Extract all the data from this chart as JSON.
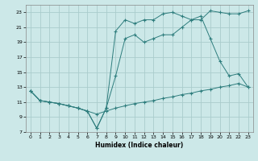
{
  "xlabel": "Humidex (Indice chaleur)",
  "bg_color": "#cce8e8",
  "grid_color": "#aacccc",
  "line_color": "#2e7d7d",
  "xlim": [
    -0.5,
    23.5
  ],
  "ylim": [
    7,
    24
  ],
  "xticks": [
    0,
    1,
    2,
    3,
    4,
    5,
    6,
    7,
    8,
    9,
    10,
    11,
    12,
    13,
    14,
    15,
    16,
    17,
    18,
    19,
    20,
    21,
    22,
    23
  ],
  "yticks": [
    7,
    9,
    11,
    13,
    15,
    17,
    19,
    21,
    23
  ],
  "series1_x": [
    0,
    1,
    2,
    3,
    4,
    5,
    6,
    7,
    8,
    9,
    10,
    11,
    12,
    13,
    14,
    15,
    16,
    17,
    18,
    19,
    20,
    21,
    22,
    23
  ],
  "series1_y": [
    12.5,
    11.2,
    11.0,
    10.8,
    10.5,
    10.2,
    9.8,
    9.4,
    9.8,
    10.2,
    10.5,
    10.8,
    11.0,
    11.2,
    11.5,
    11.7,
    12.0,
    12.2,
    12.5,
    12.7,
    13.0,
    13.2,
    13.5,
    13.0
  ],
  "series2_x": [
    0,
    1,
    2,
    3,
    4,
    5,
    6,
    7,
    8,
    9,
    10,
    11,
    12,
    13,
    14,
    15,
    16,
    17,
    18,
    19,
    20,
    21,
    22,
    23
  ],
  "series2_y": [
    12.5,
    11.2,
    11.0,
    10.8,
    10.5,
    10.2,
    9.8,
    7.5,
    10.2,
    14.5,
    19.5,
    20.0,
    19.0,
    19.5,
    20.0,
    20.0,
    21.0,
    22.0,
    22.5,
    19.5,
    16.5,
    14.5,
    14.8,
    13.0
  ],
  "series3_x": [
    0,
    1,
    2,
    3,
    4,
    5,
    6,
    7,
    8,
    9,
    10,
    11,
    12,
    13,
    14,
    15,
    16,
    17,
    18,
    19,
    20,
    21,
    22,
    23
  ],
  "series3_y": [
    12.5,
    11.2,
    11.0,
    10.8,
    10.5,
    10.2,
    9.8,
    7.5,
    10.2,
    20.5,
    22.0,
    21.5,
    22.0,
    22.0,
    22.8,
    23.0,
    22.5,
    22.0,
    22.0,
    23.2,
    23.0,
    22.8,
    22.8,
    23.2
  ]
}
